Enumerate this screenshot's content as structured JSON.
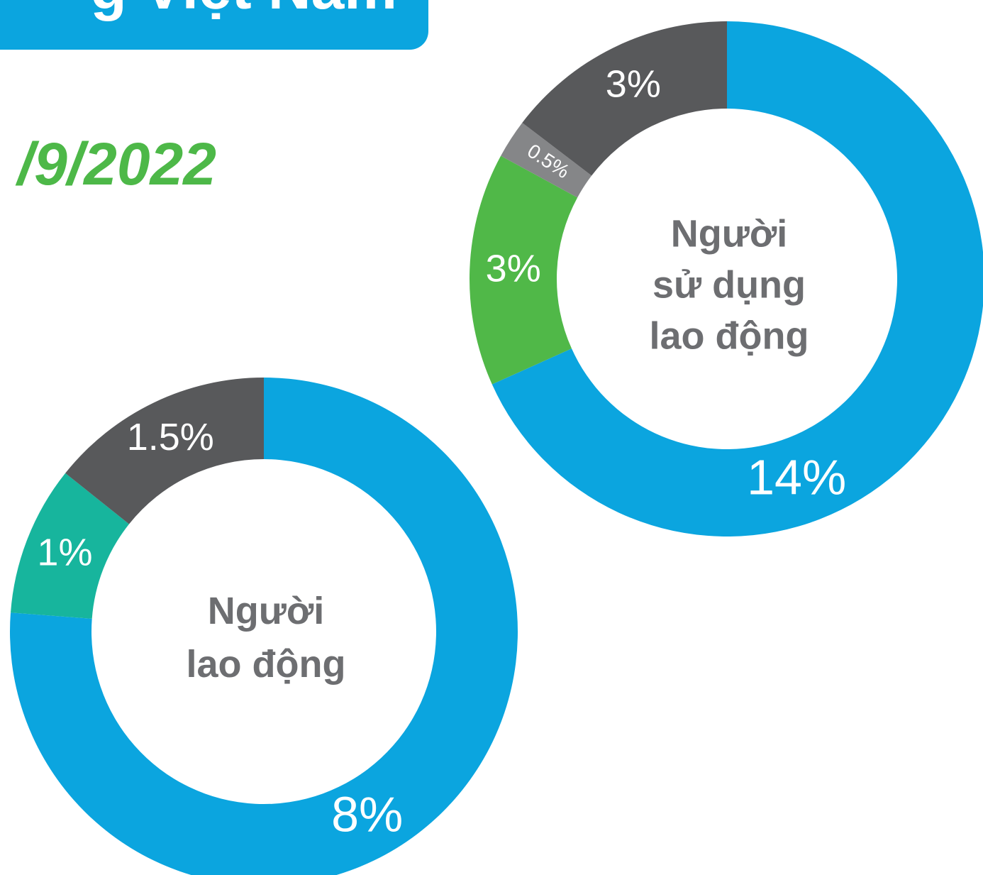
{
  "header": {
    "title": "g Việt Nam",
    "date": "/9/2022"
  },
  "chart_data": [
    {
      "type": "pie",
      "donut": true,
      "center_label": [
        "Người",
        "sử dụng",
        "lao động"
      ],
      "categories": [
        null,
        null,
        null,
        null
      ],
      "values": [
        14,
        3,
        0.5,
        3
      ],
      "value_labels": [
        "14%",
        "3%",
        "0.5%",
        "3%"
      ],
      "colors": [
        "#0ba5df",
        "#50b848",
        "#858688",
        "#58595b"
      ]
    },
    {
      "type": "pie",
      "donut": true,
      "center_label": [
        "Người",
        "lao động"
      ],
      "categories": [
        null,
        null,
        null
      ],
      "values": [
        8,
        1,
        1.5
      ],
      "value_labels": [
        "8%",
        "1%",
        "1.5%"
      ],
      "colors": [
        "#0ba5df",
        "#17b59d",
        "#58595b"
      ]
    }
  ]
}
